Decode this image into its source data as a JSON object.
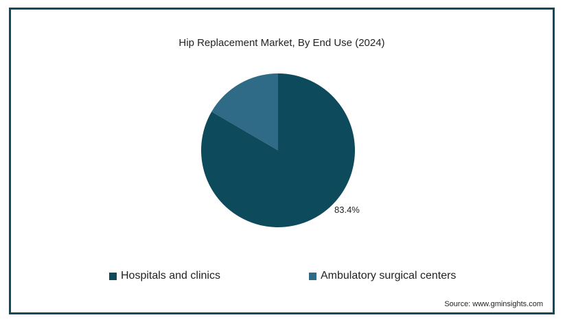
{
  "chart_data": {
    "type": "pie",
    "title": "Hip Replacement Market, By End Use (2024)",
    "slices": [
      {
        "label": "Hospitals and clinics",
        "value": 83.4,
        "color": "#0d4a5c",
        "data_label": "83.4%"
      },
      {
        "label": "Ambulatory surgical centers",
        "value": 16.6,
        "color": "#2f6a86",
        "data_label": ""
      }
    ],
    "legend_position": "bottom"
  },
  "source": "Source: www.gminsights.com"
}
